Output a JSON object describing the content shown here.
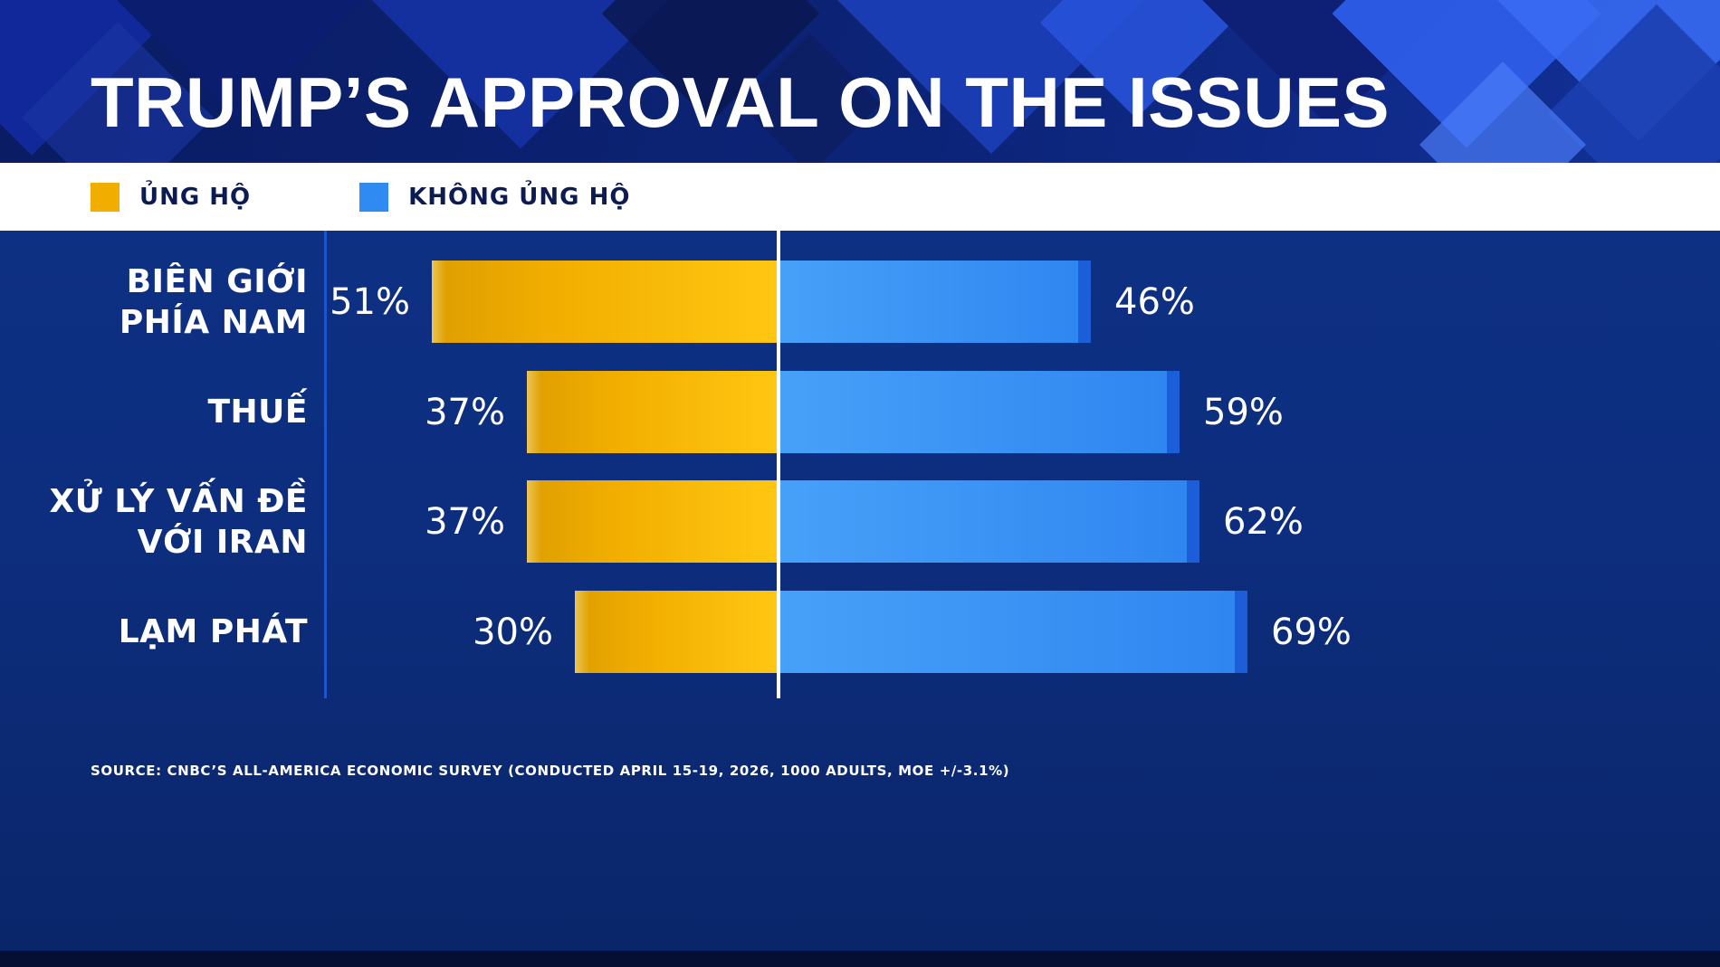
{
  "title": "TRUMP’S APPROVAL ON THE ISSUES",
  "legend": [
    {
      "label": "ỦNG HỘ",
      "color": "#f2ae00"
    },
    {
      "label": "KHÔNG ỦNG HỘ",
      "color": "#2f8af1"
    }
  ],
  "source": "SOURCE: CNBC’S ALL-AMERICA ECONOMIC SURVEY (CONDUCTED APRIL 15-19, 2026, 1000 ADULTS, MOE +/-3.1%)",
  "colors": {
    "approve": "#f2ae00",
    "disapprove": "#2f8af1",
    "background": "#0d2e7e",
    "header_background": "#0c2478",
    "legend_band": "#ffffff",
    "text": "#ffffff",
    "center_line": "#ffffff",
    "axis_divider": "#1f55cc"
  },
  "chart_data": {
    "type": "bar",
    "variant": "diverging-horizontal",
    "title": "TRUMP’S APPROVAL ON THE ISSUES",
    "unit": "%",
    "xlim": [
      0,
      100
    ],
    "grid": false,
    "legend_position": "top",
    "categories": [
      "BIÊN GIỚI PHÍA NAM",
      "THUẾ",
      "XỬ LÝ VẤN ĐỀ VỚI IRAN",
      "LẠM PHÁT"
    ],
    "category_lines": [
      [
        "BIÊN GIỚI",
        "PHÍA NAM"
      ],
      [
        "THUẾ"
      ],
      [
        "XỬ LÝ VẤN ĐỀ",
        "VỚI IRAN"
      ],
      [
        "LẠM PHÁT"
      ]
    ],
    "series": [
      {
        "name": "ỦNG HỘ",
        "side": "left",
        "color": "#f2ae00",
        "values": [
          51,
          37,
          37,
          30
        ]
      },
      {
        "name": "KHÔNG ỦNG HỘ",
        "side": "right",
        "color": "#2f8af1",
        "values": [
          46,
          59,
          62,
          69
        ]
      }
    ]
  }
}
